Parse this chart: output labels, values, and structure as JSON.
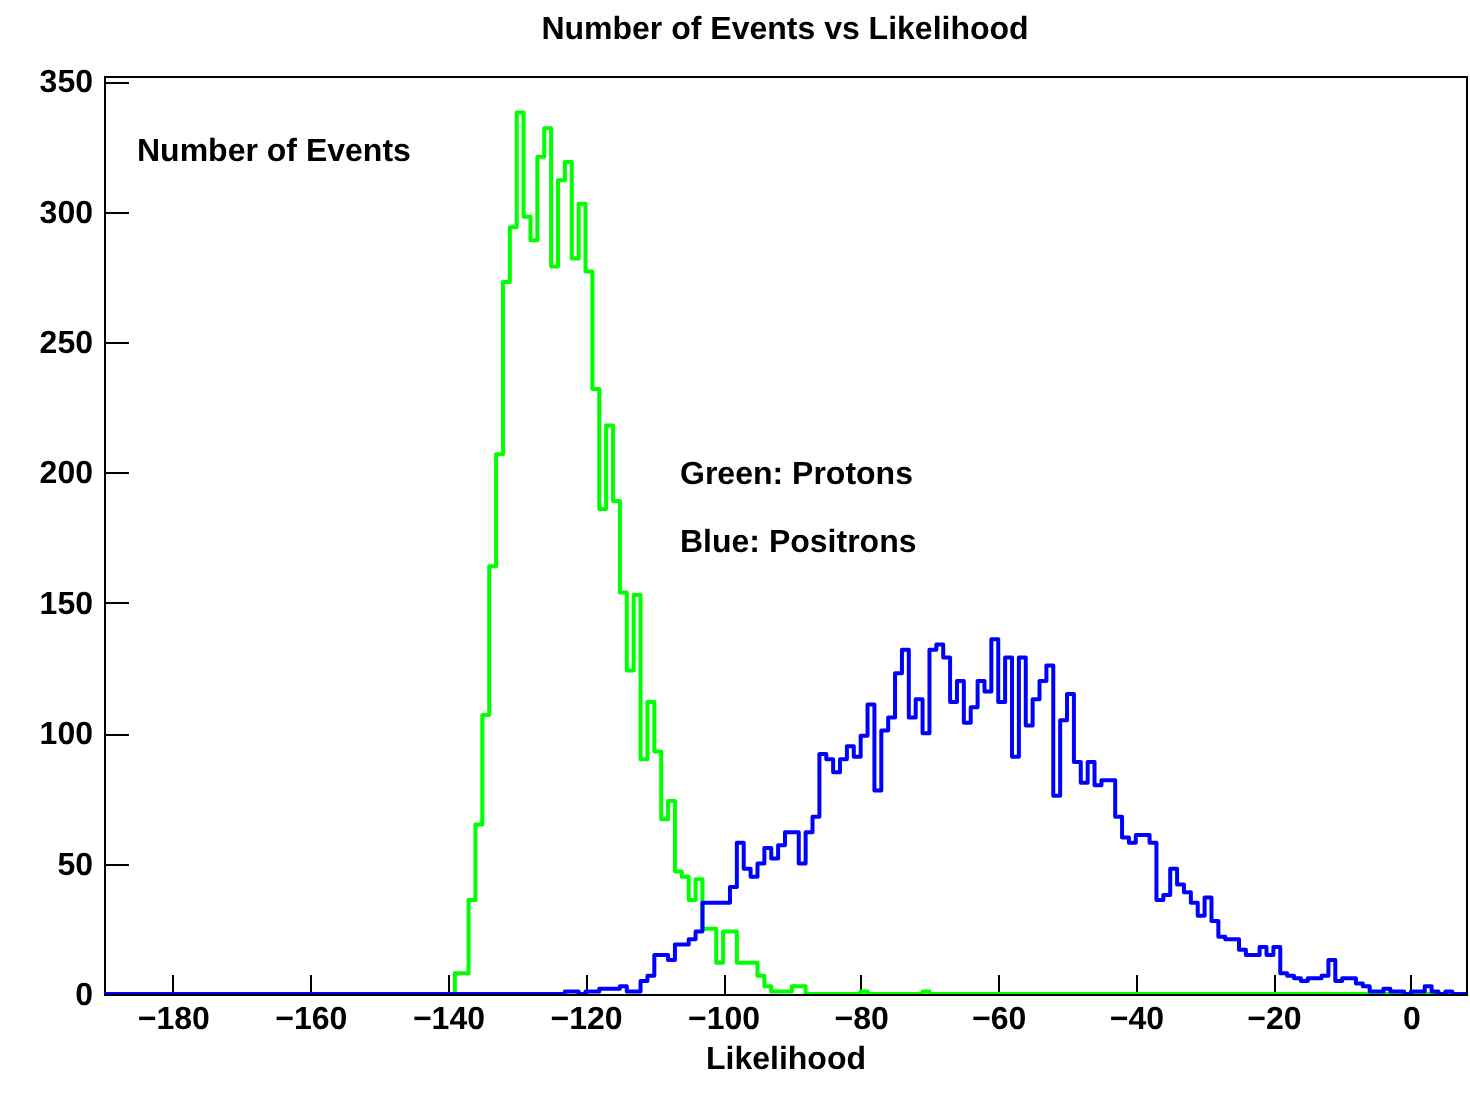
{
  "chart_data": {
    "type": "histogram",
    "title": "Number of Events vs Likelihood",
    "xlabel": "Likelihood",
    "ylabel": "Number of Events",
    "annotations": [
      "Green: Protons",
      "Blue: Positrons"
    ],
    "bins": [
      -190,
      -189,
      -188,
      -187,
      -186,
      -185,
      -184,
      -183,
      -182,
      -181,
      -180,
      -179,
      -178,
      -177,
      -176,
      -175,
      -174,
      -173,
      -172,
      -171,
      -170,
      -169,
      -168,
      -167,
      -166,
      -165,
      -164,
      -163,
      -162,
      -161,
      -160,
      -159,
      -158,
      -157,
      -156,
      -155,
      -154,
      -153,
      -152,
      -151,
      -150,
      -149,
      -148,
      -147,
      -146,
      -145,
      -144,
      -143,
      -142,
      -141,
      -140,
      -139,
      -138,
      -137,
      -136,
      -135,
      -134,
      -133,
      -132,
      -131,
      -130,
      -129,
      -128,
      -127,
      -126,
      -125,
      -124,
      -123,
      -122,
      -121,
      -120,
      -119,
      -118,
      -117,
      -116,
      -115,
      -114,
      -113,
      -112,
      -111,
      -110,
      -109,
      -108,
      -107,
      -106,
      -105,
      -104,
      -103,
      -102,
      -101,
      -100,
      -99,
      -98,
      -97,
      -96,
      -95,
      -94,
      -93,
      -92,
      -91,
      -90,
      -89,
      -88,
      -87,
      -86,
      -85,
      -84,
      -83,
      -82,
      -81,
      -80,
      -79,
      -78,
      -77,
      -76,
      -75,
      -74,
      -73,
      -72,
      -71,
      -70,
      -69,
      -68,
      -67,
      -66,
      -65,
      -64,
      -63,
      -62,
      -61,
      -60,
      -59,
      -58,
      -57,
      -56,
      -55,
      -54,
      -53,
      -52,
      -51,
      -50,
      -49,
      -48,
      -47,
      -46,
      -45,
      -44,
      -43,
      -42,
      -41,
      -40,
      -39,
      -38,
      -37,
      -36,
      -35,
      -34,
      -33,
      -32,
      -31,
      -30,
      -29,
      -28,
      -27,
      -26,
      -25,
      -24,
      -23,
      -22,
      -21,
      -20,
      -19,
      -18,
      -17,
      -16,
      -15,
      -14,
      -13,
      -12,
      -11,
      -10,
      -9,
      -8,
      -7,
      -6,
      -5,
      -4,
      -3,
      -2,
      -1,
      0,
      1,
      2,
      3,
      4,
      5,
      6,
      7,
      8
    ],
    "series": [
      {
        "color": "#00ff00",
        "values": [
          0,
          0,
          0,
          0,
          0,
          0,
          0,
          0,
          0,
          0,
          0,
          0,
          0,
          0,
          0,
          0,
          0,
          0,
          0,
          0,
          0,
          0,
          0,
          0,
          0,
          0,
          0,
          0,
          0,
          0,
          0,
          0,
          0,
          0,
          0,
          0,
          0,
          0,
          0,
          0,
          0,
          0,
          0,
          0,
          0,
          0,
          0,
          0,
          0,
          0,
          0,
          8,
          8,
          36,
          65,
          107,
          164,
          207,
          273,
          294,
          338,
          298,
          289,
          321,
          332,
          279,
          312,
          319,
          282,
          303,
          277,
          232,
          186,
          218,
          189,
          154,
          124,
          153,
          90,
          112,
          93,
          67,
          74,
          47,
          45,
          36,
          44,
          25,
          25,
          12,
          24,
          24,
          12,
          12,
          12,
          7,
          3,
          1,
          1,
          1,
          3,
          3,
          0,
          0,
          0,
          0,
          0,
          0,
          0,
          0,
          1,
          0,
          0,
          0,
          0,
          0,
          0,
          0,
          0,
          1,
          0,
          0,
          0,
          0,
          0,
          0,
          0,
          0,
          0,
          0,
          0,
          0,
          0,
          0,
          0,
          0,
          0,
          0,
          0,
          0,
          0,
          0,
          0,
          0,
          0,
          0,
          0,
          0,
          0,
          0,
          0,
          0,
          0,
          0,
          0,
          0,
          0,
          0,
          0,
          0,
          0,
          0,
          0,
          0,
          0,
          0,
          0,
          0,
          0,
          0,
          0,
          0,
          0,
          0,
          0,
          0,
          0,
          0,
          0,
          0,
          0,
          0,
          0,
          0,
          0,
          0,
          0,
          0,
          0,
          0,
          0,
          0,
          0,
          0,
          0,
          0,
          0,
          0
        ]
      },
      {
        "color": "#0000ff",
        "values": [
          0,
          0,
          0,
          0,
          0,
          0,
          0,
          0,
          0,
          0,
          0,
          0,
          0,
          0,
          0,
          0,
          0,
          0,
          0,
          0,
          0,
          0,
          0,
          0,
          0,
          0,
          0,
          0,
          0,
          0,
          0,
          0,
          0,
          0,
          0,
          0,
          0,
          0,
          0,
          0,
          0,
          0,
          0,
          0,
          0,
          0,
          0,
          0,
          0,
          0,
          0,
          0,
          0,
          0,
          0,
          0,
          0,
          0,
          0,
          0,
          0,
          0,
          0,
          0,
          0,
          0,
          0,
          1,
          1,
          0,
          1,
          1,
          2,
          2,
          2,
          3,
          1,
          1,
          5,
          7,
          15,
          15,
          13,
          19,
          19,
          21,
          24,
          35,
          35,
          35,
          35,
          41,
          58,
          48,
          45,
          50,
          56,
          52,
          57,
          62,
          62,
          50,
          62,
          68,
          92,
          90,
          85,
          90,
          95,
          91,
          99,
          111,
          78,
          101,
          106,
          123,
          132,
          106,
          113,
          100,
          132,
          134,
          129,
          112,
          120,
          104,
          110,
          120,
          116,
          136,
          112,
          129,
          91,
          129,
          103,
          113,
          120,
          126,
          76,
          105,
          115,
          89,
          81,
          89,
          80,
          82,
          82,
          68,
          60,
          58,
          61,
          61,
          58,
          36,
          38,
          48,
          42,
          39,
          35,
          30,
          37,
          28,
          22,
          21,
          21,
          17,
          15,
          15,
          18,
          15,
          18,
          8,
          7,
          6,
          5,
          6,
          6,
          7,
          13,
          5,
          6,
          6,
          4,
          3,
          1,
          1,
          2,
          1,
          1,
          0,
          1,
          1,
          3,
          1,
          0,
          1,
          0,
          0
        ]
      }
    ],
    "xlim": [
      -190,
      8
    ],
    "ylim": [
      0,
      352
    ],
    "xticks": [
      -180,
      -160,
      -140,
      -120,
      -100,
      -80,
      -60,
      -40,
      -20,
      0
    ],
    "yticks": [
      0,
      50,
      100,
      150,
      200,
      250,
      300,
      350
    ],
    "grid": false
  }
}
